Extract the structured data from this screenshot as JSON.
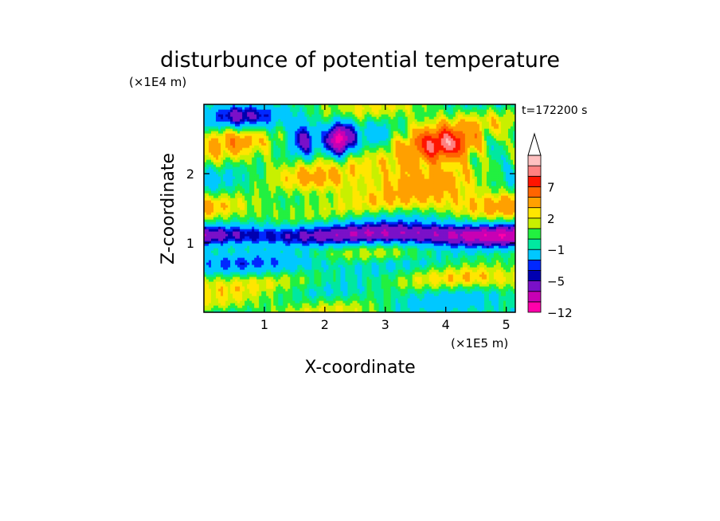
{
  "chart_data": {
    "type": "heatmap",
    "title": "disturbunce of potential temperature",
    "time_label": "t=172200 s",
    "xlabel": "X-coordinate",
    "ylabel": "Z-coordinate",
    "x_unit": "(×1E5 m)",
    "y_unit": "(×1E4 m)",
    "xlim": [
      0,
      5.15
    ],
    "ylim": [
      0,
      3
    ],
    "x_ticks": [
      1,
      2,
      3,
      4,
      5
    ],
    "y_ticks": [
      1,
      2
    ],
    "colorbar": {
      "levels": [
        -12,
        -9,
        -7,
        -5,
        -4,
        -3,
        -1,
        0,
        1,
        2,
        3,
        5,
        7,
        9,
        11
      ],
      "labels": [
        "-12",
        "-5",
        "-1",
        "2",
        "7"
      ],
      "label_levels": [
        -12,
        -5,
        -1,
        2,
        7
      ],
      "colors": [
        "#ff00aa",
        "#c800b4",
        "#7a10c8",
        "#0000b0",
        "#0028ff",
        "#00c8ff",
        "#00e8a0",
        "#22f040",
        "#c8f000",
        "#ffe600",
        "#ffa000",
        "#ff6400",
        "#ff1400",
        "#ff8080",
        "#ffc0c0"
      ],
      "overflow_arrow": "white"
    },
    "field_description": "Layered disturbance field: strong negative band near z≈1.0–1.35×1E4 m across full domain; positive maxima in upper levels near x≈4, z≈2.4; negative waves in upper left near x≈1.5–2.5, z≈2.2–2.8.",
    "features": [
      {
        "kind": "negative_band",
        "z": [
          0.85,
          1.4
        ],
        "value": -5
      },
      {
        "kind": "positive_max",
        "x": 4.0,
        "z": 2.4,
        "value": 8
      },
      {
        "kind": "negative_wave",
        "x": [
          0.2,
          2.8
        ],
        "z": [
          2.1,
          2.8
        ],
        "value": -6
      }
    ]
  }
}
